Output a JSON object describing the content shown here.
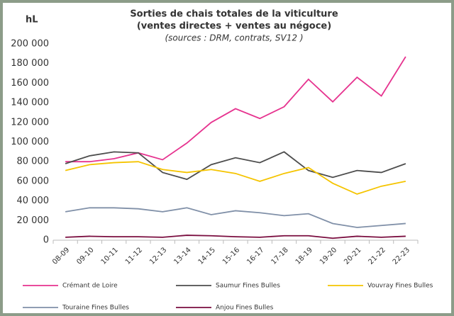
{
  "chart_data": {
    "type": "line",
    "title": "Sorties de chais totales de la viticulture",
    "subtitle": "(ventes directes + ventes au négoce)",
    "source": "(sources : DRM, contrats, SV12 )",
    "y_label": "hL",
    "categories": [
      "08-09",
      "09-10",
      "10-11",
      "11-12",
      "12-13",
      "13-14",
      "14-15",
      "15-16",
      "16-17",
      "17-18",
      "18-19",
      "19-20",
      "20-21",
      "21-22",
      "22-23"
    ],
    "series": [
      {
        "name": "Crémant de Loire",
        "color": "#e6338f",
        "values": [
          80000,
          80000,
          83000,
          89000,
          82000,
          99000,
          120000,
          134000,
          124000,
          136000,
          164000,
          141000,
          166000,
          147000,
          187000
        ]
      },
      {
        "name": "Saumur Fines Bulles",
        "color": "#4d4d4d",
        "values": [
          78000,
          86000,
          90000,
          89000,
          69000,
          62000,
          77000,
          84000,
          79000,
          90000,
          71000,
          64000,
          71000,
          69000,
          78000
        ]
      },
      {
        "name": "Vouvray Fines Bulles",
        "color": "#f5c400",
        "values": [
          71000,
          77000,
          79000,
          80000,
          72000,
          69000,
          72000,
          68000,
          60000,
          68000,
          74000,
          58000,
          47000,
          55000,
          60000
        ]
      },
      {
        "name": "Touraine Fines Bulles",
        "color": "#8090a8",
        "values": [
          29000,
          33000,
          33000,
          32000,
          29000,
          33000,
          26000,
          30000,
          28000,
          25000,
          27000,
          17000,
          13000,
          15000,
          17000
        ]
      },
      {
        "name": "Anjou Fines Bulles",
        "color": "#7a0d3f",
        "values": [
          3000,
          4000,
          3500,
          3500,
          3000,
          5000,
          4500,
          3500,
          3000,
          4500,
          4500,
          2000,
          4000,
          3000,
          4000
        ]
      }
    ],
    "ylim": [
      0,
      200000
    ],
    "yticks": [
      0,
      {
        "value": 20000,
        "label": "20 000"
      },
      {
        "value": 40000,
        "label": "40 000"
      },
      {
        "value": 60000,
        "label": "60 000"
      },
      {
        "value": 80000,
        "label": "80 000"
      },
      {
        "value": 100000,
        "label": "100 000"
      },
      {
        "value": 120000,
        "label": "120 000"
      },
      {
        "value": 140000,
        "label": "140 000"
      },
      {
        "value": 160000,
        "label": "160 000"
      },
      {
        "value": 180000,
        "label": "180 000"
      },
      {
        "value": 200000,
        "label": "200 000"
      }
    ],
    "grid": false,
    "legend": "bottom"
  }
}
